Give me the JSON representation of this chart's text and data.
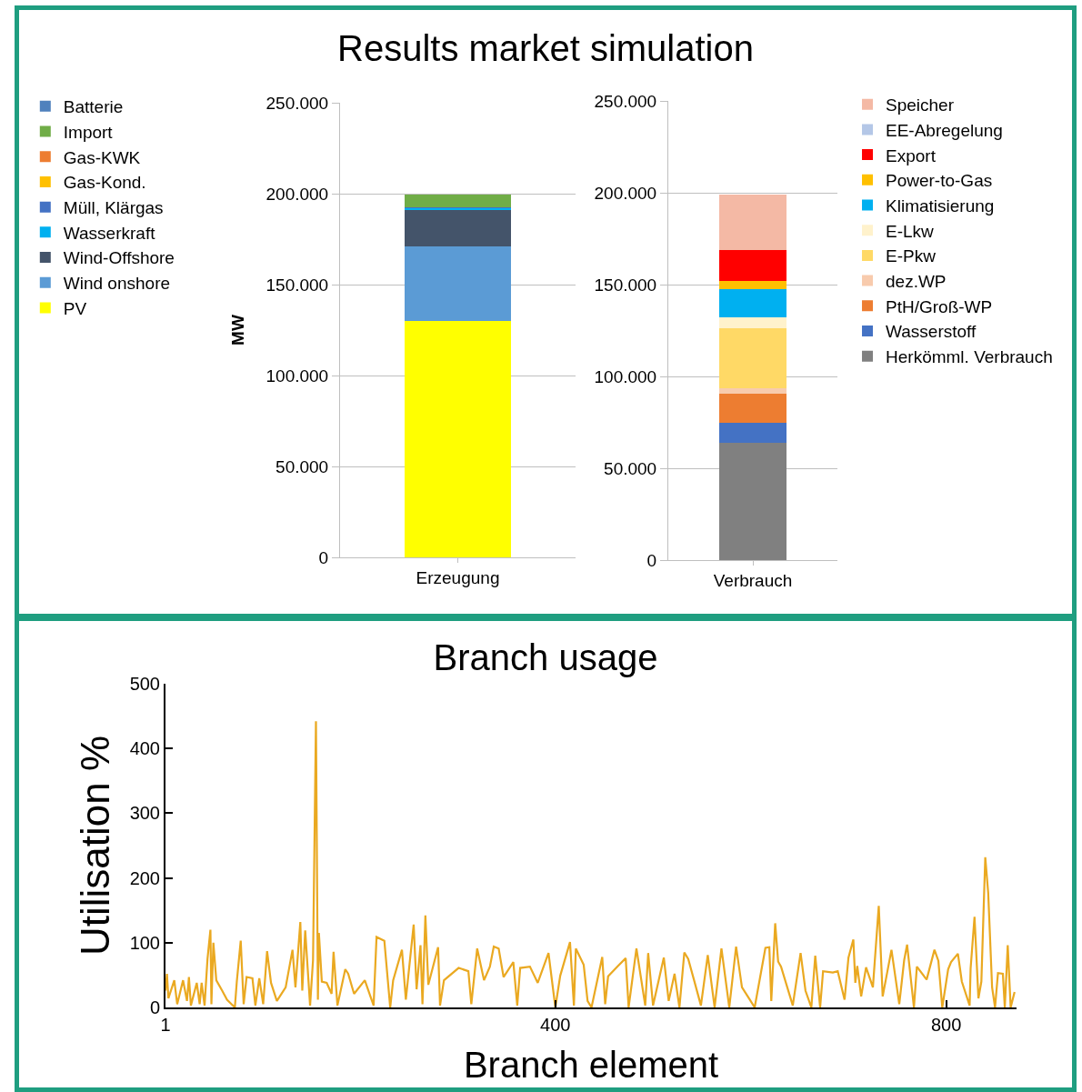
{
  "chart_data": [
    {
      "type": "bar",
      "title": "Results market simulation",
      "ylabel": "MW",
      "categories": [
        "Erzeugung"
      ],
      "stacked": true,
      "grid": "y",
      "legend": "left",
      "ylim": [
        0,
        250000
      ],
      "yticks": [
        {
          "value": 0,
          "label": "0"
        },
        {
          "value": 50000,
          "label": "50.000"
        },
        {
          "value": 100000,
          "label": "100.000"
        },
        {
          "value": 150000,
          "label": "150.000"
        },
        {
          "value": 200000,
          "label": "200.000"
        },
        {
          "value": 250000,
          "label": "250.000"
        }
      ],
      "series": [
        {
          "name": "PV",
          "color": "#ffff00",
          "values": [
            130000
          ]
        },
        {
          "name": "Wind onshore",
          "color": "#5b9bd5",
          "values": [
            41000
          ]
        },
        {
          "name": "Wind-Offshore",
          "color": "#44546a",
          "values": [
            20000
          ]
        },
        {
          "name": "Wasserkraft",
          "color": "#00b0f0",
          "values": [
            1000
          ]
        },
        {
          "name": "Müll, Klärgas",
          "color": "#4472c4",
          "values": [
            500
          ]
        },
        {
          "name": "Gas-Kond.",
          "color": "#ffc000",
          "values": [
            0
          ]
        },
        {
          "name": "Gas-KWK",
          "color": "#ed7d31",
          "values": [
            0
          ]
        },
        {
          "name": "Import",
          "color": "#70ad47",
          "values": [
            7000
          ]
        },
        {
          "name": "Batterie",
          "color": "#4f81bd",
          "values": [
            0
          ]
        }
      ]
    },
    {
      "type": "bar",
      "categories": [
        "Verbrauch"
      ],
      "stacked": true,
      "grid": "y",
      "legend": "right",
      "ylim": [
        0,
        250000
      ],
      "yticks": [
        {
          "value": 0,
          "label": "0"
        },
        {
          "value": 50000,
          "label": "50.000"
        },
        {
          "value": 100000,
          "label": "100.000"
        },
        {
          "value": 150000,
          "label": "150.000"
        },
        {
          "value": 200000,
          "label": "200.000"
        },
        {
          "value": 250000,
          "label": "250.000"
        }
      ],
      "series": [
        {
          "name": "Herkömml. Verbrauch",
          "color": "#808080",
          "values": [
            64000
          ]
        },
        {
          "name": "Wasserstoff",
          "color": "#4472c4",
          "values": [
            11000
          ]
        },
        {
          "name": "PtH/Groß-WP",
          "color": "#ed7d31",
          "values": [
            15500
          ]
        },
        {
          "name": "dez.WP",
          "color": "#f8cbad",
          "values": [
            3000
          ]
        },
        {
          "name": "E-Pkw",
          "color": "#ffd966",
          "values": [
            32500
          ]
        },
        {
          "name": "E-Lkw",
          "color": "#fff2cc",
          "values": [
            6000
          ]
        },
        {
          "name": "Klimatisierung",
          "color": "#00b0f0",
          "values": [
            15500
          ]
        },
        {
          "name": "Power-to-Gas",
          "color": "#ffc000",
          "values": [
            4500
          ]
        },
        {
          "name": "Export",
          "color": "#ff0000",
          "values": [
            17000
          ]
        },
        {
          "name": "EE-Abregelung",
          "color": "#b4c7e7",
          "values": [
            0
          ]
        },
        {
          "name": "Speicher",
          "color": "#f4b9a5",
          "values": [
            30000
          ]
        }
      ]
    },
    {
      "type": "line",
      "title": "Branch usage",
      "xlabel": "Branch element",
      "ylabel": "Utilisation %",
      "grid": false,
      "legend": false,
      "marker": "none",
      "line_style": "solid",
      "xlim": [
        1,
        872
      ],
      "xticks": [
        1,
        400,
        800
      ],
      "ylim": [
        0,
        500
      ],
      "yticks": [
        0,
        100,
        200,
        300,
        400,
        500
      ],
      "series": [
        {
          "color": "#eaa921",
          "x": [
            1,
            2.5,
            4,
            10,
            13,
            19,
            23,
            25,
            27,
            33,
            36,
            38,
            41,
            44,
            47,
            48,
            50,
            53,
            59,
            64,
            72,
            74,
            78,
            81,
            84,
            90,
            93,
            97,
            101,
            105,
            109,
            115,
            124,
            131,
            134,
            139,
            141,
            144,
            149,
            152,
            155,
            157,
            158,
            161,
            166,
            171,
            173,
            177,
            185,
            188,
            194,
            205,
            214,
            217,
            225,
            231,
            234,
            243,
            247,
            255,
            258,
            262,
            264,
            267,
            270,
            280,
            282,
            286,
            301,
            311,
            314,
            320,
            327,
            333,
            337,
            342,
            347,
            357,
            361,
            364,
            374,
            382,
            393,
            400,
            405,
            415,
            419,
            421,
            429,
            433,
            437,
            448,
            451,
            454,
            464,
            472,
            475,
            483,
            492,
            495,
            500,
            511,
            516,
            522,
            527,
            532,
            536,
            542,
            549,
            556,
            563,
            570,
            578,
            585,
            591,
            599,
            604,
            615,
            619,
            621,
            625,
            628,
            631,
            643,
            651,
            656,
            662,
            666,
            671,
            674,
            684,
            689,
            696,
            700,
            705,
            707,
            709,
            713,
            718,
            725,
            731,
            735,
            744,
            752,
            757,
            760,
            767,
            770,
            780,
            788,
            792,
            796,
            802,
            805,
            812,
            816,
            824,
            825,
            829,
            833,
            836,
            840,
            843,
            847,
            850,
            853,
            858,
            860,
            863,
            866,
            870
          ],
          "values": [
            26,
            52,
            14,
            42,
            5,
            42,
            10,
            47,
            3,
            38,
            5,
            38,
            3,
            75,
            120,
            5,
            100,
            42,
            26,
            12,
            0,
            40,
            103,
            5,
            47,
            45,
            3,
            45,
            5,
            87,
            38,
            10,
            31,
            89,
            31,
            132,
            26,
            119,
            3,
            73,
            442,
            12,
            115,
            40,
            38,
            21,
            86,
            3,
            59,
            52,
            21,
            42,
            3,
            109,
            103,
            0,
            42,
            89,
            12,
            128,
            28,
            96,
            5,
            142,
            35,
            93,
            3,
            42,
            61,
            56,
            5,
            91,
            42,
            63,
            94,
            91,
            47,
            70,
            3,
            61,
            63,
            38,
            84,
            0,
            49,
            101,
            3,
            91,
            66,
            10,
            0,
            78,
            5,
            48,
            64,
            76,
            0,
            91,
            3,
            84,
            3,
            77,
            10,
            52,
            0,
            85,
            75,
            42,
            3,
            81,
            0,
            91,
            0,
            94,
            31,
            12,
            0,
            92,
            93,
            10,
            130,
            71,
            63,
            3,
            84,
            26,
            0,
            80,
            0,
            56,
            54,
            56,
            12,
            77,
            105,
            38,
            64,
            17,
            62,
            31,
            157,
            17,
            89,
            5,
            73,
            97,
            0,
            63,
            43,
            89,
            72,
            0,
            59,
            70,
            83,
            40,
            3,
            60,
            140,
            14,
            40,
            232,
            177,
            31,
            0,
            53,
            52,
            0,
            96,
            0,
            24
          ]
        }
      ]
    }
  ]
}
